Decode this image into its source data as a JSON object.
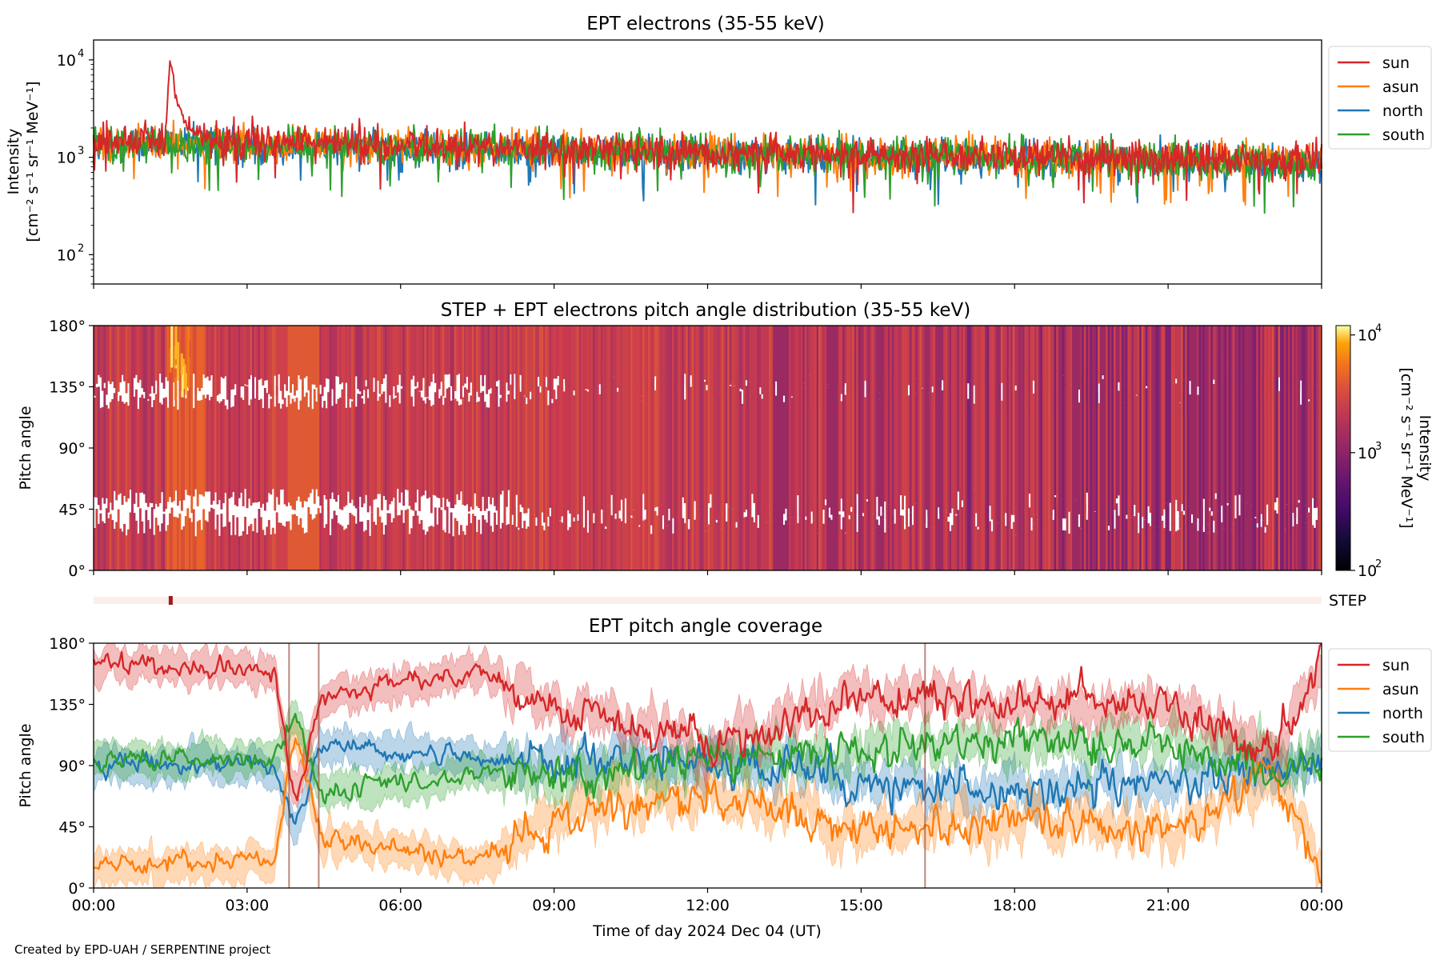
{
  "credit": "Created by EPD-UAH / SERPENTINE project",
  "colors": {
    "sun": "#d62728",
    "asun": "#ff7f0e",
    "north": "#1f77b4",
    "south": "#2ca02c"
  },
  "chart_data": [
    {
      "id": "intensity",
      "type": "line",
      "title": "EPT electrons (35-55 keV)",
      "ylabel_line1": "Intensity",
      "ylabel_line2": "[cm⁻² s⁻¹ sr⁻¹ MeV⁻¹]",
      "yscale": "log",
      "ylim": [
        50,
        16000
      ],
      "yticks": [
        {
          "base": "10",
          "exp": "2",
          "value": 100
        },
        {
          "base": "10",
          "exp": "3",
          "value": 1000
        },
        {
          "base": "10",
          "exp": "4",
          "value": 10000
        }
      ],
      "x_hours": [
        0,
        24
      ],
      "legend": "top-right outside",
      "series": [
        {
          "name": "sun",
          "color": "#d62728",
          "baseline_log": [
            [
              0,
              3.17
            ],
            [
              1.4,
              3.2
            ],
            [
              6,
              3.12
            ],
            [
              12,
              3.05
            ],
            [
              18,
              3.02
            ],
            [
              24,
              2.97
            ]
          ],
          "event": {
            "start_h": 1.4,
            "peak_h": 1.5,
            "peak": 11000,
            "decay_h": 2.1
          }
        },
        {
          "name": "asun",
          "color": "#ff7f0e",
          "baseline_log": [
            [
              0,
              3.15
            ],
            [
              6,
              3.12
            ],
            [
              12,
              3.05
            ],
            [
              18,
              3.0
            ],
            [
              24,
              2.95
            ]
          ]
        },
        {
          "name": "north",
          "color": "#1f77b4",
          "baseline_log": [
            [
              0,
              3.13
            ],
            [
              6,
              3.1
            ],
            [
              12,
              3.03
            ],
            [
              18,
              2.99
            ],
            [
              24,
              2.93
            ]
          ]
        },
        {
          "name": "south",
          "color": "#2ca02c",
          "baseline_log": [
            [
              0,
              3.14
            ],
            [
              6,
              3.12
            ],
            [
              12,
              3.04
            ],
            [
              18,
              3.0
            ],
            [
              24,
              2.94
            ]
          ]
        }
      ]
    },
    {
      "id": "pad",
      "type": "heatmap",
      "title": "STEP + EPT electrons pitch angle distribution (35-55 keV)",
      "ylabel": "Pitch angle",
      "yticks": [
        "0°",
        "45°",
        "90°",
        "135°",
        "180°"
      ],
      "ylim": [
        0,
        180
      ],
      "colorbar": {
        "label": "Intensity",
        "units": "[cm⁻² s⁻¹ sr⁻¹ MeV⁻¹]",
        "scale": "log",
        "range": [
          100,
          12000
        ],
        "ticks": [
          {
            "base": "10",
            "exp": "2"
          },
          {
            "base": "10",
            "exp": "3"
          },
          {
            "base": "10",
            "exp": "4"
          }
        ],
        "colormap": "inferno"
      }
    },
    {
      "id": "step",
      "type": "heatmap",
      "label": "STEP",
      "mark_hour": 1.5
    },
    {
      "id": "coverage",
      "type": "line",
      "title": "EPT pitch angle coverage",
      "ylabel": "Pitch angle",
      "yticks": [
        "0°",
        "45°",
        "90°",
        "135°",
        "180°"
      ],
      "ylim": [
        0,
        180
      ],
      "legend": "top-right outside",
      "series": [
        {
          "name": "sun",
          "color": "#d62728",
          "trend": [
            [
              0,
              165
            ],
            [
              3.5,
              160
            ],
            [
              3.9,
              60
            ],
            [
              4.4,
              140
            ],
            [
              7.5,
              160
            ],
            [
              9,
              130
            ],
            [
              12,
              105
            ],
            [
              15,
              140
            ],
            [
              18,
              135
            ],
            [
              21,
              135
            ],
            [
              23,
              95
            ],
            [
              24,
              165
            ]
          ]
        },
        {
          "name": "asun",
          "color": "#ff7f0e",
          "trend": [
            [
              0,
              15
            ],
            [
              3.5,
              20
            ],
            [
              3.9,
              120
            ],
            [
              4.4,
              35
            ],
            [
              7.5,
              20
            ],
            [
              9,
              50
            ],
            [
              12,
              70
            ],
            [
              15,
              45
            ],
            [
              18,
              50
            ],
            [
              21,
              40
            ],
            [
              23,
              85
            ],
            [
              24,
              15
            ]
          ]
        },
        {
          "name": "north",
          "color": "#1f77b4",
          "trend": [
            [
              0,
              90
            ],
            [
              3.5,
              90
            ],
            [
              3.9,
              40
            ],
            [
              4.4,
              105
            ],
            [
              7.5,
              95
            ],
            [
              9,
              90
            ],
            [
              12,
              95
            ],
            [
              15,
              80
            ],
            [
              18,
              70
            ],
            [
              21,
              80
            ],
            [
              23,
              90
            ],
            [
              24,
              95
            ]
          ]
        },
        {
          "name": "south",
          "color": "#2ca02c",
          "trend": [
            [
              0,
              95
            ],
            [
              3.5,
              95
            ],
            [
              3.9,
              130
            ],
            [
              4.4,
              70
            ],
            [
              7.5,
              85
            ],
            [
              9,
              80
            ],
            [
              12,
              95
            ],
            [
              15,
              100
            ],
            [
              18,
              110
            ],
            [
              21,
              105
            ],
            [
              23,
              90
            ],
            [
              24,
              90
            ]
          ]
        }
      ]
    }
  ],
  "xaxis": {
    "label": "Time of day 2024 Dec 04 (UT)",
    "ticks": [
      "00:00",
      "03:00",
      "06:00",
      "09:00",
      "12:00",
      "15:00",
      "18:00",
      "21:00",
      "00:00"
    ]
  },
  "legend_labels": [
    "sun",
    "asun",
    "north",
    "south"
  ]
}
